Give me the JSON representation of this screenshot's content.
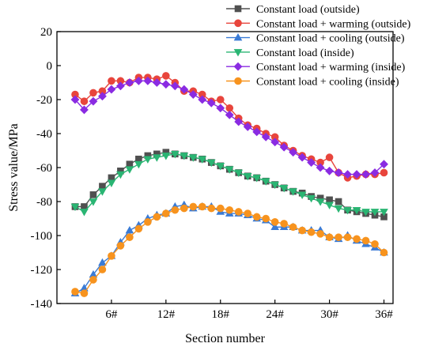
{
  "chart_data": {
    "type": "line",
    "xlabel": "Section number",
    "ylabel": "Stress value/MPa",
    "xlim": [
      0,
      37
    ],
    "ylim": [
      -140,
      20
    ],
    "x_ticks": [
      {
        "value": 6,
        "label": "6#"
      },
      {
        "value": 12,
        "label": "12#"
      },
      {
        "value": 18,
        "label": "18#"
      },
      {
        "value": 24,
        "label": "24#"
      },
      {
        "value": 30,
        "label": "30#"
      },
      {
        "value": 36,
        "label": "36#"
      }
    ],
    "y_ticks": [
      20,
      0,
      -20,
      -40,
      -60,
      -80,
      -100,
      -120,
      -140
    ],
    "grid": false,
    "legend_position": "top-right",
    "x": [
      2,
      3,
      4,
      5,
      6,
      7,
      8,
      9,
      10,
      11,
      12,
      13,
      14,
      15,
      16,
      17,
      18,
      19,
      20,
      21,
      22,
      23,
      24,
      25,
      26,
      27,
      28,
      29,
      30,
      31,
      32,
      33,
      34,
      35,
      36
    ],
    "series": [
      {
        "name": "Constant load (outside)",
        "color": "#505050",
        "marker": "square",
        "values": [
          -83,
          -83,
          -76,
          -71,
          -66,
          -62,
          -58,
          -55,
          -53,
          -52,
          -51,
          -52,
          -53,
          -54,
          -55,
          -57,
          -59,
          -61,
          -63,
          -65,
          -66,
          -68,
          -70,
          -72,
          -74,
          -75,
          -77,
          -78,
          -79,
          -80,
          -85,
          -86,
          -87,
          -88,
          -89
        ]
      },
      {
        "name": "Constant load + warming (outside)",
        "color": "#e8453c",
        "marker": "circle",
        "values": [
          -17,
          -21,
          -16,
          -15,
          -9,
          -9,
          -10,
          -7,
          -7,
          -8,
          -6,
          -10,
          -15,
          -15,
          -17,
          -21,
          -20,
          -25,
          -31,
          -35,
          -37,
          -40,
          -42,
          -47,
          -50,
          -53,
          -55,
          -57,
          -54,
          -63,
          -66,
          -65,
          -64,
          -64,
          -63
        ]
      },
      {
        "name": "Constant load + cooling (outside)",
        "color": "#3a7bd5",
        "marker": "triangle-up",
        "values": [
          -134,
          -131,
          -123,
          -116,
          -112,
          -104,
          -97,
          -94,
          -90,
          -88,
          -87,
          -83,
          -82,
          -84,
          -83,
          -83,
          -86,
          -87,
          -87,
          -88,
          -90,
          -91,
          -95,
          -95,
          -95,
          -97,
          -97,
          -97,
          -101,
          -102,
          -100,
          -103,
          -105,
          -107,
          -110
        ]
      },
      {
        "name": "Constant load (inside)",
        "color": "#2ab573",
        "marker": "triangle-down",
        "values": [
          -83,
          -86,
          -80,
          -74,
          -69,
          -64,
          -61,
          -58,
          -55,
          -54,
          -53,
          -52,
          -53,
          -54,
          -55,
          -57,
          -59,
          -61,
          -63,
          -65,
          -66,
          -68,
          -70,
          -72,
          -74,
          -76,
          -78,
          -80,
          -82,
          -84,
          -85,
          -85,
          -86,
          -86,
          -86
        ]
      },
      {
        "name": "Constant load + warming (inside)",
        "color": "#8a2be2",
        "marker": "diamond",
        "values": [
          -20,
          -26,
          -21,
          -18,
          -14,
          -12,
          -10,
          -9,
          -9,
          -10,
          -11,
          -12,
          -14,
          -17,
          -20,
          -22,
          -25,
          -29,
          -33,
          -36,
          -39,
          -42,
          -45,
          -48,
          -51,
          -54,
          -57,
          -60,
          -62,
          -63,
          -64,
          -64,
          -64,
          -63,
          -58
        ]
      },
      {
        "name": "Constant load + cooling (inside)",
        "color": "#f7931e",
        "marker": "circle",
        "values": [
          -133,
          -134,
          -126,
          -120,
          -112,
          -106,
          -101,
          -96,
          -92,
          -89,
          -87,
          -85,
          -84,
          -83,
          -83,
          -84,
          -84,
          -85,
          -86,
          -87,
          -89,
          -90,
          -92,
          -93,
          -95,
          -97,
          -98,
          -99,
          -101,
          -101,
          -101,
          -102,
          -103,
          -105,
          -110
        ]
      }
    ]
  }
}
